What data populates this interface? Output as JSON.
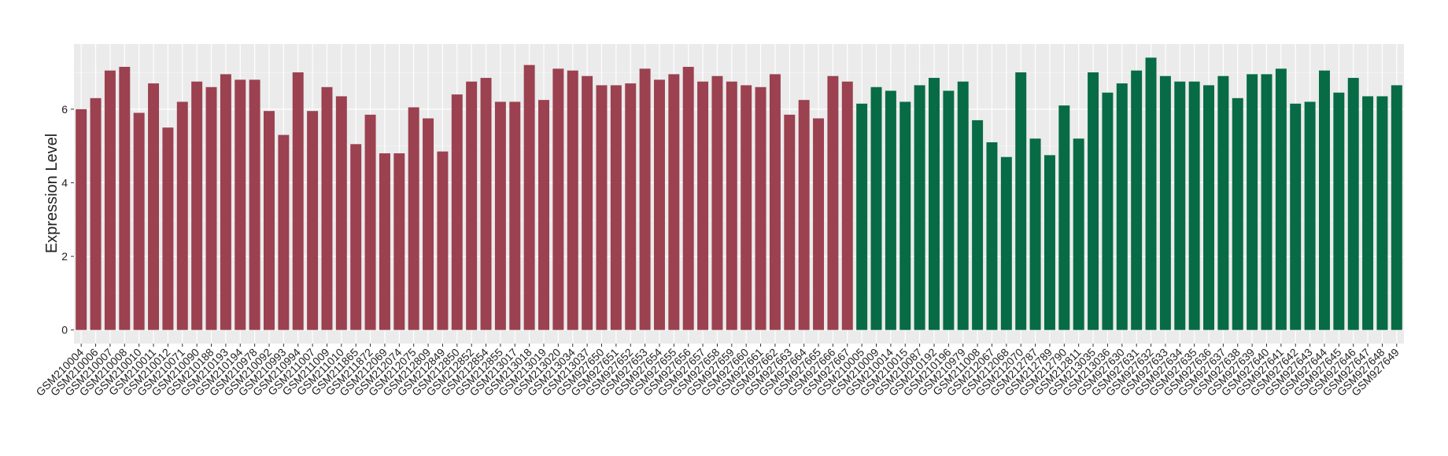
{
  "chart_data": {
    "type": "bar",
    "y_label": "Expression Level",
    "categories": [
      "GSM210004",
      "GSM210006",
      "GSM210007",
      "GSM210008",
      "GSM210010",
      "GSM210011",
      "GSM210012",
      "GSM210071",
      "GSM210090",
      "GSM210188",
      "GSM210193",
      "GSM210194",
      "GSM210978",
      "GSM210092",
      "GSM210993",
      "GSM210994",
      "GSM211007",
      "GSM211009",
      "GSM211010",
      "GSM211865",
      "GSM211872",
      "GSM212069",
      "GSM212074",
      "GSM212075",
      "GSM212809",
      "GSM212849",
      "GSM212850",
      "GSM212852",
      "GSM212854",
      "GSM212855",
      "GSM213017",
      "GSM213018",
      "GSM213019",
      "GSM213020",
      "GSM213034",
      "GSM213037",
      "GSM927650",
      "GSM927651",
      "GSM927652",
      "GSM927653",
      "GSM927654",
      "GSM927655",
      "GSM927656",
      "GSM927657",
      "GSM927658",
      "GSM927659",
      "GSM927660",
      "GSM927661",
      "GSM927662",
      "GSM927663",
      "GSM927664",
      "GSM927665",
      "GSM927666",
      "GSM927667",
      "GSM210005",
      "GSM210009",
      "GSM210014",
      "GSM210015",
      "GSM210087",
      "GSM210192",
      "GSM210196",
      "GSM210979",
      "GSM211008",
      "GSM212067",
      "GSM212068",
      "GSM212070",
      "GSM212787",
      "GSM212789",
      "GSM212790",
      "GSM212811",
      "GSM213035",
      "GSM213036",
      "GSM927630",
      "GSM927631",
      "GSM927632",
      "GSM927633",
      "GSM927634",
      "GSM927635",
      "GSM927636",
      "GSM927637",
      "GSM927638",
      "GSM927639",
      "GSM927640",
      "GSM927641",
      "GSM927642",
      "GSM927643",
      "GSM927644",
      "GSM927645",
      "GSM927646",
      "GSM927647",
      "GSM927648",
      "GSM927649"
    ],
    "series": [
      {
        "color": "#9b4150",
        "values": [
          6.0,
          6.3,
          7.05,
          7.15,
          5.9,
          6.7,
          5.5,
          6.2,
          6.75,
          6.6,
          6.95,
          6.8,
          6.8,
          5.95,
          5.3,
          7.0,
          5.95,
          6.6,
          6.35,
          5.05,
          5.85,
          4.8,
          4.8,
          6.05,
          5.75,
          4.85,
          6.4,
          6.75,
          6.85,
          6.2,
          6.2,
          7.2,
          6.25,
          7.1,
          7.05,
          6.9,
          6.65,
          6.65,
          6.7,
          7.1,
          6.8,
          6.95,
          7.15,
          6.75,
          6.9,
          6.75,
          6.65,
          6.6,
          6.95,
          5.85,
          6.25,
          5.75,
          6.9,
          6.75,
          null,
          null,
          null,
          null,
          null,
          null,
          null,
          null,
          null,
          null,
          null,
          null,
          null,
          null,
          null,
          null,
          null,
          null,
          null,
          null,
          null,
          null,
          null,
          null,
          null,
          null,
          null,
          null,
          null,
          null,
          null,
          null,
          null,
          null,
          null,
          null,
          null,
          null
        ]
      },
      {
        "color": "#076b45",
        "values": [
          null,
          null,
          null,
          null,
          null,
          null,
          null,
          null,
          null,
          null,
          null,
          null,
          null,
          null,
          null,
          null,
          null,
          null,
          null,
          null,
          null,
          null,
          null,
          null,
          null,
          null,
          null,
          null,
          null,
          null,
          null,
          null,
          null,
          null,
          null,
          null,
          null,
          null,
          null,
          null,
          null,
          null,
          null,
          null,
          null,
          null,
          null,
          null,
          null,
          null,
          null,
          null,
          null,
          null,
          6.15,
          6.6,
          6.5,
          6.2,
          6.65,
          6.85,
          6.5,
          6.75,
          5.7,
          5.1,
          4.7,
          7.0,
          5.2,
          4.75,
          6.1,
          5.2,
          7.0,
          6.45,
          6.7,
          7.05,
          7.4,
          6.9,
          6.75,
          6.75,
          6.65,
          6.9,
          6.3,
          6.95,
          6.95,
          7.1,
          6.15,
          6.2,
          7.05,
          6.45,
          6.85,
          6.35,
          6.35,
          6.65
        ]
      }
    ],
    "ylim": [
      -0.37,
      7.77
    ],
    "yticks": [
      0,
      2,
      4,
      6
    ],
    "grid": true
  }
}
